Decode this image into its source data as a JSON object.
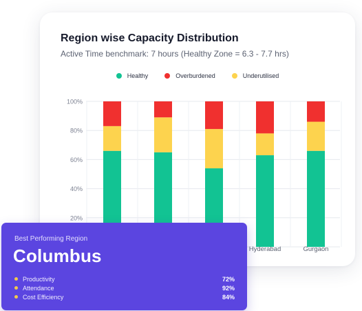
{
  "card": {
    "title": "Region wise Capacity Distribution",
    "subtitle": "Active Time benchmark: 7 hours (Healthy Zone = 6.3 - 7.7 hrs)"
  },
  "chart_data": {
    "type": "bar",
    "stacked": true,
    "categories": [
      "",
      "",
      "",
      "Hyderabad",
      "Gurgaon"
    ],
    "series": [
      {
        "name": "Healthy",
        "color": "#12c393",
        "values": [
          66,
          65,
          54,
          63,
          66
        ]
      },
      {
        "name": "Overburdened",
        "color": "#f0302f",
        "values": [
          17,
          11,
          19,
          22,
          14
        ]
      },
      {
        "name": "Underutilised",
        "color": "#fdd34e",
        "values": [
          17,
          24,
          27,
          15,
          20
        ]
      }
    ],
    "stack_order": [
      "Healthy",
      "Underutilised",
      "Overburdened"
    ],
    "y_ticks": [
      "20%",
      "40%",
      "60%",
      "80%",
      "100%"
    ],
    "ylim": [
      0,
      100
    ],
    "grid": true,
    "legend_position": "top-center"
  },
  "highlight": {
    "label": "Best Performing Region",
    "region": "Columbus",
    "metrics": [
      {
        "name": "Productivity",
        "value": "72%"
      },
      {
        "name": "Attendance",
        "value": "92%"
      },
      {
        "name": "Cost Efficiency",
        "value": "84%"
      }
    ],
    "dot_color": "#f2c94c"
  }
}
